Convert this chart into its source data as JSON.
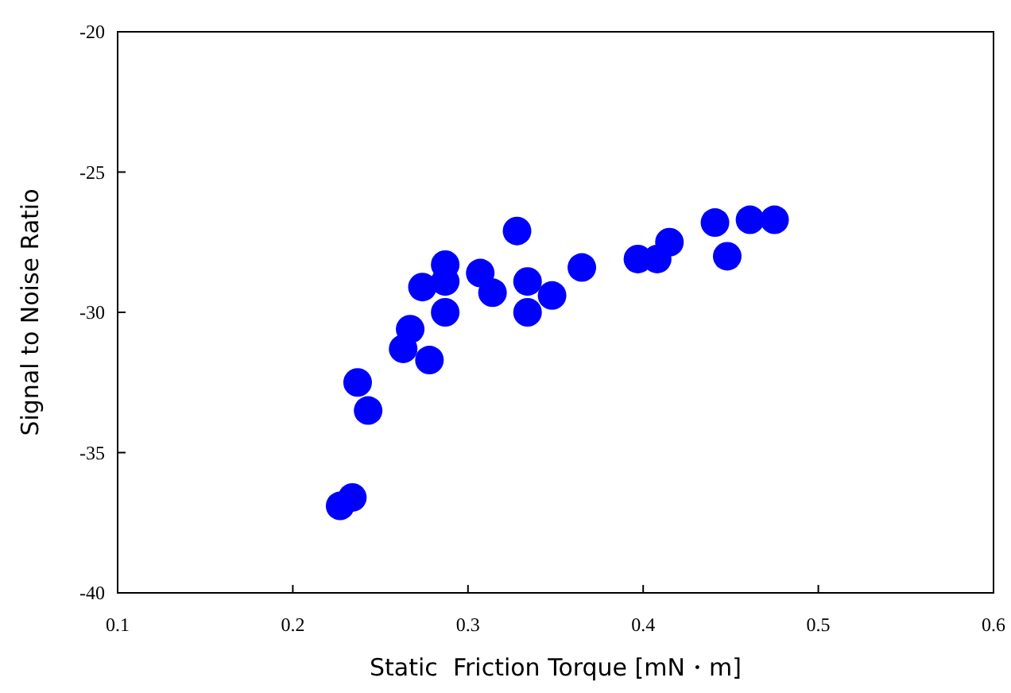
{
  "chart_data": {
    "type": "scatter",
    "xlabel": "Static  Friction Torque [mN・m]",
    "ylabel": "Signal to Noise Ratio",
    "x": [
      0.227,
      0.234,
      0.237,
      0.243,
      0.263,
      0.267,
      0.278,
      0.274,
      0.287,
      0.287,
      0.287,
      0.307,
      0.314,
      0.328,
      0.334,
      0.334,
      0.348,
      0.365,
      0.397,
      0.408,
      0.415,
      0.441,
      0.448,
      0.461,
      0.475
    ],
    "series": [
      {
        "color": "#0000ff",
        "values": [
          -36.9,
          -36.6,
          -32.5,
          -33.5,
          -31.3,
          -30.6,
          -31.7,
          -29.1,
          -28.3,
          -28.9,
          -30.0,
          -28.6,
          -29.3,
          -27.1,
          -28.9,
          -30.0,
          -29.4,
          -28.4,
          -28.1,
          -28.1,
          -27.5,
          -26.8,
          -28.0,
          -26.7,
          -26.7
        ]
      }
    ],
    "xlim": [
      0.1,
      0.6
    ],
    "xticks": [
      0.1,
      0.2,
      0.3,
      0.4,
      0.5,
      0.6
    ],
    "ylim": [
      -40,
      -20
    ],
    "yticks": [
      -40,
      -35,
      -30,
      -25,
      -20
    ],
    "grid": false,
    "marker": "circle"
  }
}
